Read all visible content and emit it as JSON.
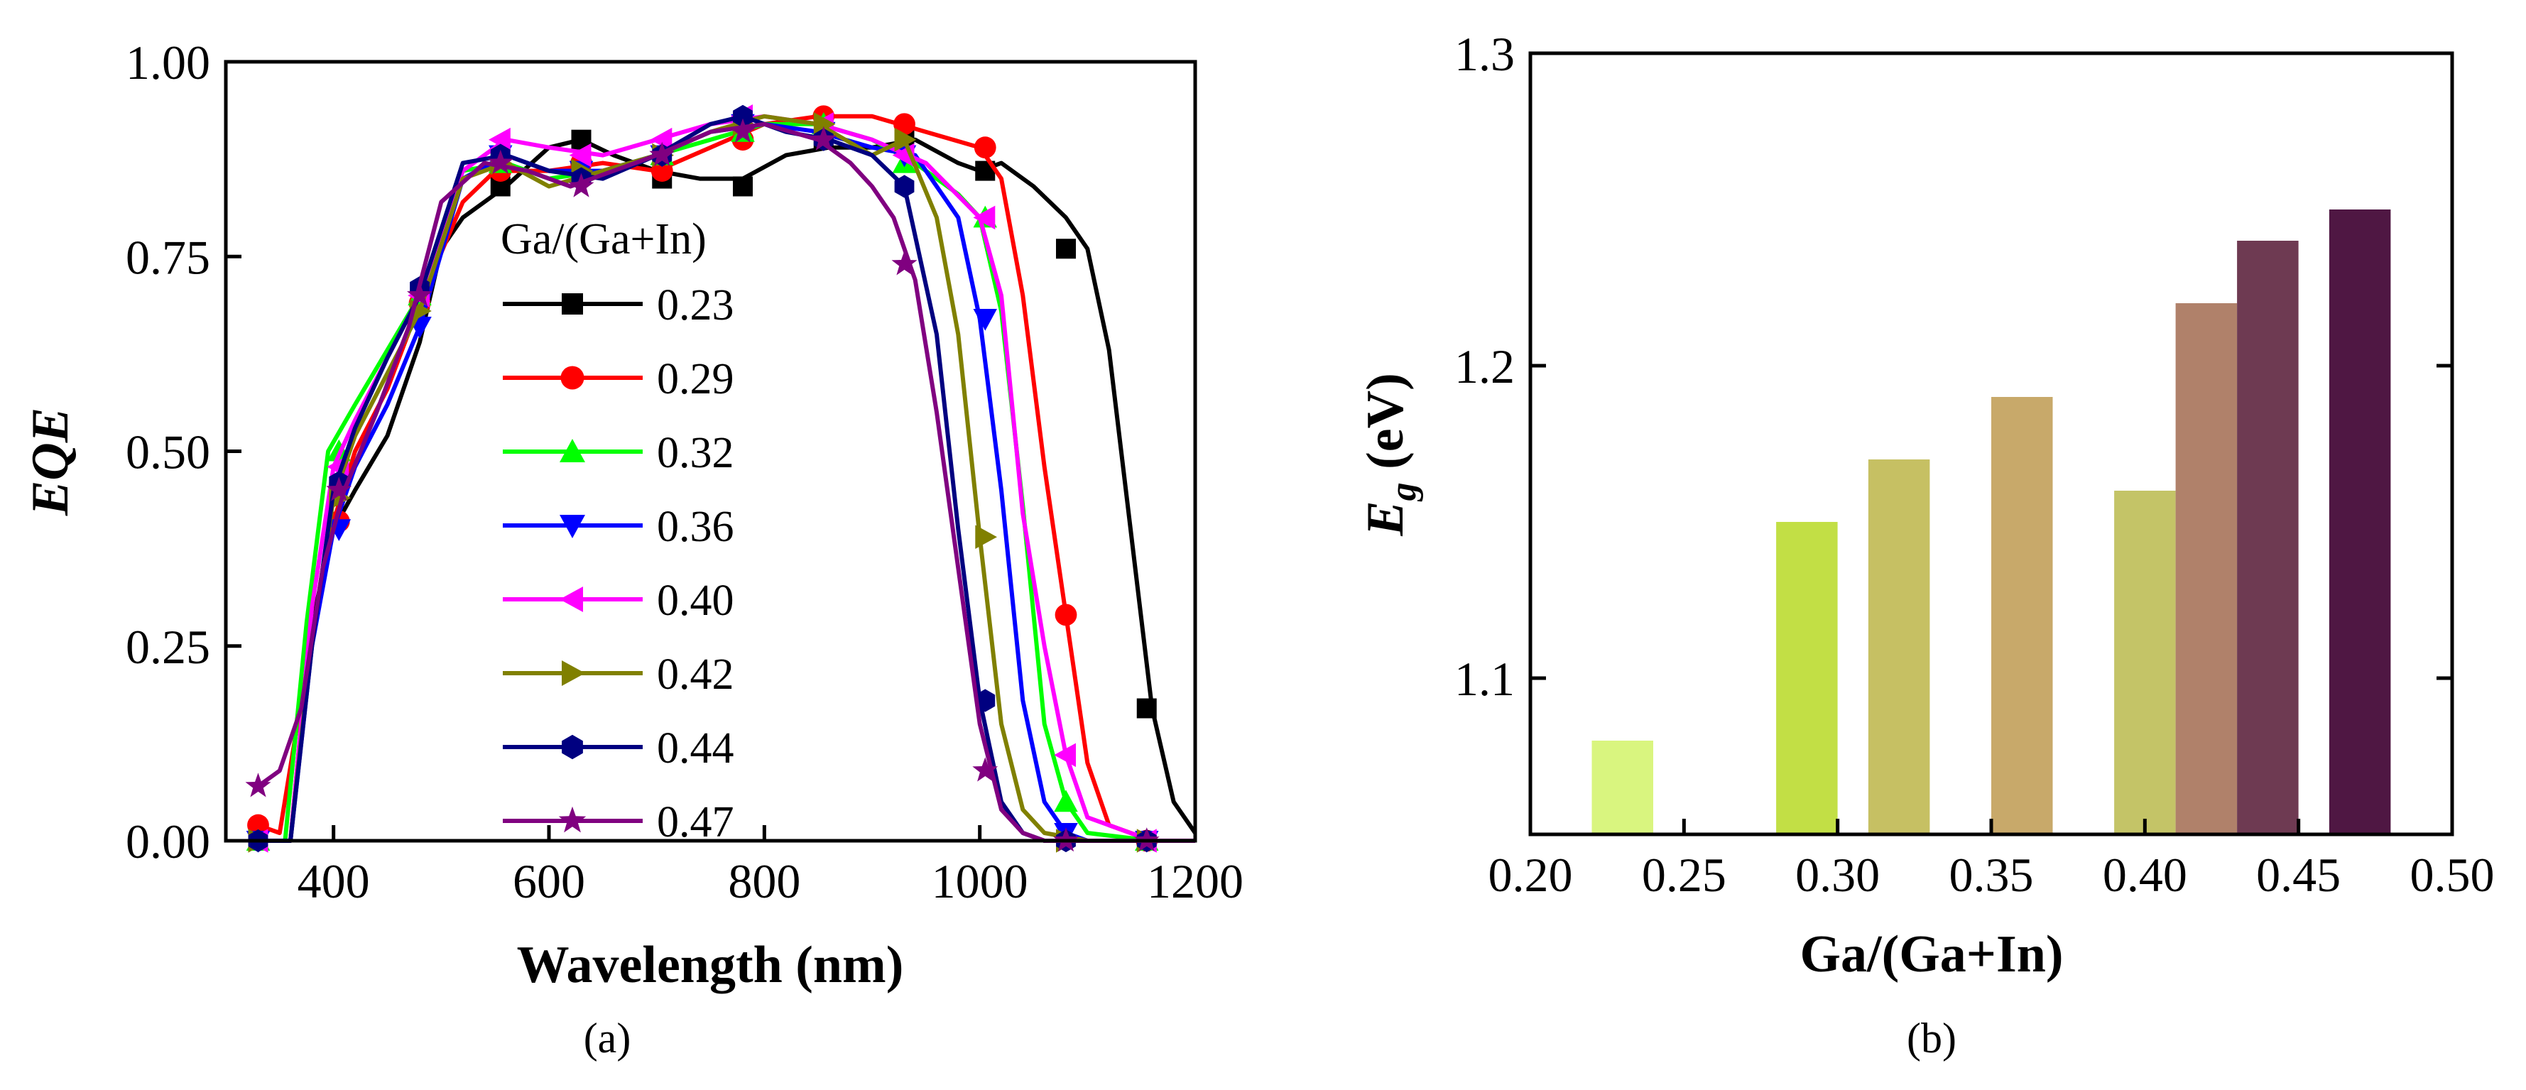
{
  "chart_data": [
    {
      "type": "line",
      "panel_label": "(a)",
      "xlabel": "Wavelength (nm)",
      "ylabel": "EQE",
      "xlim": [
        300,
        1200
      ],
      "ylim": [
        0,
        1.0
      ],
      "x_ticks": [
        400,
        600,
        800,
        1000,
        1200
      ],
      "y_ticks": [
        0,
        0.25,
        0.5,
        0.75,
        1.0
      ],
      "y_tick_labels": [
        "0.00",
        "0.25",
        "0.50",
        "0.75",
        "1.00"
      ],
      "legend_title": "Ga/(Ga+In)",
      "legend_position": "center-left",
      "series": [
        {
          "name": "0.23",
          "color": "#000000",
          "marker": "square",
          "x": [
            330,
            360,
            370,
            380,
            400,
            420,
            450,
            480,
            500,
            520,
            540,
            560,
            600,
            630,
            660,
            700,
            740,
            780,
            820,
            860,
            900,
            940,
            980,
            1000,
            1020,
            1050,
            1080,
            1100,
            1120,
            1140,
            1160,
            1180,
            1200
          ],
          "y": [
            0.0,
            0.0,
            0.15,
            0.28,
            0.4,
            0.45,
            0.52,
            0.64,
            0.76,
            0.8,
            0.82,
            0.84,
            0.89,
            0.9,
            0.88,
            0.86,
            0.85,
            0.85,
            0.88,
            0.89,
            0.89,
            0.9,
            0.87,
            0.86,
            0.87,
            0.84,
            0.8,
            0.76,
            0.63,
            0.4,
            0.17,
            0.05,
            0.01
          ],
          "marker_x": [
            555,
            630,
            705,
            780,
            855,
            930,
            1005,
            1080,
            1155
          ],
          "marker_y": [
            0.84,
            0.9,
            0.85,
            0.84,
            0.9,
            0.9,
            0.86,
            0.76,
            0.17
          ]
        },
        {
          "name": "0.29",
          "color": "#ff0000",
          "marker": "circle",
          "x": [
            330,
            350,
            370,
            400,
            420,
            450,
            480,
            520,
            550,
            600,
            650,
            700,
            750,
            800,
            850,
            900,
            950,
            1000,
            1020,
            1040,
            1060,
            1080,
            1100,
            1120,
            1160,
            1200
          ],
          "y": [
            0.02,
            0.01,
            0.18,
            0.41,
            0.5,
            0.58,
            0.69,
            0.82,
            0.86,
            0.86,
            0.87,
            0.86,
            0.89,
            0.92,
            0.93,
            0.93,
            0.91,
            0.89,
            0.85,
            0.7,
            0.48,
            0.29,
            0.1,
            0.02,
            0.0,
            0.0
          ],
          "marker_x": [
            330,
            405,
            480,
            555,
            630,
            705,
            780,
            855,
            930,
            1005,
            1080,
            1155
          ],
          "marker_y": [
            0.02,
            0.41,
            0.69,
            0.86,
            0.87,
            0.86,
            0.9,
            0.93,
            0.92,
            0.89,
            0.29,
            0.0
          ]
        },
        {
          "name": "0.32",
          "color": "#00ff00",
          "marker": "triangle-up",
          "x": [
            330,
            355,
            375,
            395,
            420,
            450,
            480,
            520,
            560,
            600,
            650,
            700,
            750,
            800,
            850,
            900,
            940,
            980,
            1000,
            1020,
            1040,
            1060,
            1080,
            1100,
            1160,
            1200
          ],
          "y": [
            0.0,
            0.0,
            0.28,
            0.5,
            0.56,
            0.63,
            0.7,
            0.86,
            0.87,
            0.85,
            0.86,
            0.88,
            0.9,
            0.92,
            0.92,
            0.9,
            0.87,
            0.83,
            0.8,
            0.68,
            0.43,
            0.15,
            0.05,
            0.01,
            0.0,
            0.0
          ],
          "marker_x": [
            330,
            405,
            480,
            555,
            630,
            705,
            780,
            855,
            930,
            1005,
            1080,
            1155
          ],
          "marker_y": [
            0.0,
            0.5,
            0.7,
            0.87,
            0.86,
            0.88,
            0.91,
            0.92,
            0.87,
            0.8,
            0.05,
            0.0
          ]
        },
        {
          "name": "0.36",
          "color": "#0000ff",
          "marker": "triangle-down",
          "x": [
            330,
            360,
            380,
            400,
            420,
            450,
            480,
            520,
            560,
            600,
            650,
            700,
            750,
            800,
            850,
            900,
            940,
            980,
            1000,
            1020,
            1040,
            1060,
            1080,
            1100,
            1160,
            1200
          ],
          "y": [
            0.0,
            0.0,
            0.25,
            0.4,
            0.48,
            0.56,
            0.66,
            0.85,
            0.88,
            0.86,
            0.86,
            0.88,
            0.91,
            0.92,
            0.91,
            0.89,
            0.88,
            0.8,
            0.67,
            0.45,
            0.18,
            0.05,
            0.01,
            0.0,
            0.0,
            0.0
          ],
          "marker_x": [
            330,
            405,
            480,
            555,
            630,
            705,
            780,
            855,
            930,
            1005,
            1080,
            1155
          ],
          "marker_y": [
            0.0,
            0.4,
            0.66,
            0.88,
            0.86,
            0.88,
            0.92,
            0.91,
            0.88,
            0.67,
            0.01,
            0.0
          ]
        },
        {
          "name": "0.40",
          "color": "#ff00ff",
          "marker": "triangle-left",
          "x": [
            330,
            360,
            380,
            400,
            420,
            450,
            480,
            520,
            560,
            600,
            650,
            700,
            750,
            800,
            850,
            900,
            950,
            1000,
            1020,
            1040,
            1060,
            1080,
            1100,
            1160,
            1200
          ],
          "y": [
            0.0,
            0.0,
            0.3,
            0.48,
            0.54,
            0.62,
            0.7,
            0.86,
            0.9,
            0.89,
            0.88,
            0.9,
            0.92,
            0.93,
            0.92,
            0.9,
            0.87,
            0.8,
            0.7,
            0.42,
            0.25,
            0.11,
            0.03,
            0.0,
            0.0
          ],
          "marker_x": [
            330,
            405,
            480,
            555,
            630,
            705,
            780,
            855,
            930,
            1005,
            1080,
            1155
          ],
          "marker_y": [
            0.0,
            0.48,
            0.7,
            0.9,
            0.88,
            0.9,
            0.93,
            0.92,
            0.88,
            0.8,
            0.11,
            0.0
          ]
        },
        {
          "name": "0.42",
          "color": "#808000",
          "marker": "triangle-right",
          "x": [
            330,
            360,
            380,
            400,
            420,
            450,
            480,
            520,
            560,
            600,
            650,
            700,
            750,
            800,
            850,
            900,
            930,
            960,
            980,
            1000,
            1020,
            1040,
            1060,
            1100,
            1160,
            1200
          ],
          "y": [
            0.0,
            0.0,
            0.26,
            0.44,
            0.52,
            0.6,
            0.68,
            0.85,
            0.87,
            0.84,
            0.86,
            0.88,
            0.91,
            0.93,
            0.92,
            0.88,
            0.9,
            0.8,
            0.65,
            0.39,
            0.15,
            0.04,
            0.01,
            0.0,
            0.0,
            0.0
          ],
          "marker_x": [
            330,
            405,
            480,
            555,
            630,
            705,
            780,
            855,
            930,
            1005,
            1080,
            1155
          ],
          "marker_y": [
            0.0,
            0.44,
            0.68,
            0.87,
            0.86,
            0.88,
            0.92,
            0.92,
            0.9,
            0.39,
            0.0,
            0.0
          ]
        },
        {
          "name": "0.44",
          "color": "#000080",
          "marker": "hexagon",
          "x": [
            330,
            360,
            380,
            400,
            420,
            450,
            480,
            520,
            560,
            600,
            650,
            700,
            750,
            780,
            820,
            860,
            900,
            930,
            960,
            980,
            1000,
            1020,
            1040,
            1060,
            1100,
            1160,
            1200
          ],
          "y": [
            0.0,
            0.0,
            0.25,
            0.45,
            0.53,
            0.62,
            0.7,
            0.87,
            0.88,
            0.86,
            0.85,
            0.88,
            0.92,
            0.93,
            0.91,
            0.9,
            0.88,
            0.84,
            0.65,
            0.4,
            0.18,
            0.05,
            0.01,
            0.0,
            0.0,
            0.0,
            0.0
          ],
          "marker_x": [
            330,
            405,
            480,
            555,
            630,
            705,
            780,
            855,
            930,
            1005,
            1080,
            1155
          ],
          "marker_y": [
            0.0,
            0.46,
            0.71,
            0.88,
            0.85,
            0.88,
            0.93,
            0.9,
            0.84,
            0.18,
            0.0,
            0.0
          ]
        },
        {
          "name": "0.47",
          "color": "#800080",
          "marker": "star",
          "x": [
            330,
            350,
            370,
            390,
            410,
            440,
            470,
            500,
            540,
            580,
            620,
            660,
            700,
            750,
            800,
            850,
            880,
            900,
            920,
            940,
            960,
            980,
            1000,
            1020,
            1040,
            1060,
            1100,
            1160,
            1200
          ],
          "y": [
            0.07,
            0.09,
            0.17,
            0.35,
            0.45,
            0.55,
            0.66,
            0.82,
            0.87,
            0.86,
            0.84,
            0.86,
            0.88,
            0.91,
            0.92,
            0.9,
            0.87,
            0.84,
            0.8,
            0.72,
            0.55,
            0.35,
            0.15,
            0.04,
            0.01,
            0.0,
            0.0,
            0.0,
            0.0
          ],
          "marker_x": [
            330,
            405,
            480,
            555,
            630,
            705,
            780,
            855,
            930,
            1005,
            1080,
            1155
          ],
          "marker_y": [
            0.07,
            0.45,
            0.7,
            0.87,
            0.84,
            0.88,
            0.91,
            0.9,
            0.74,
            0.09,
            0.0,
            0.0
          ]
        }
      ]
    },
    {
      "type": "bar",
      "panel_label": "(b)",
      "xlabel": "Ga/(Ga+In)",
      "ylabel_main": "E",
      "ylabel_sub": "g",
      "ylabel_unit": " (eV)",
      "xlim": [
        0.2,
        0.5
      ],
      "ylim": [
        1.05,
        1.3
      ],
      "x_ticks": [
        0.2,
        0.25,
        0.3,
        0.35,
        0.4,
        0.45,
        0.5
      ],
      "x_tick_labels": [
        "0.20",
        "0.25",
        "0.30",
        "0.35",
        "0.40",
        "0.45",
        "0.50"
      ],
      "y_ticks": [
        1.1,
        1.2,
        1.3
      ],
      "y_tick_labels": [
        "1.1",
        "1.2",
        "1.3"
      ],
      "bar_width": 0.02,
      "bars": [
        {
          "x": 0.23,
          "value": 1.08,
          "color": "#d9f57f"
        },
        {
          "x": 0.29,
          "value": 1.15,
          "color": "#c2df45"
        },
        {
          "x": 0.32,
          "value": 1.17,
          "color": "#c6c063"
        },
        {
          "x": 0.36,
          "value": 1.19,
          "color": "#c8a96a"
        },
        {
          "x": 0.4,
          "value": 1.16,
          "color": "#c4c467"
        },
        {
          "x": 0.42,
          "value": 1.22,
          "color": "#b0816a"
        },
        {
          "x": 0.44,
          "value": 1.24,
          "color": "#6e3a52"
        },
        {
          "x": 0.47,
          "value": 1.25,
          "color": "#4f1743"
        }
      ]
    }
  ]
}
